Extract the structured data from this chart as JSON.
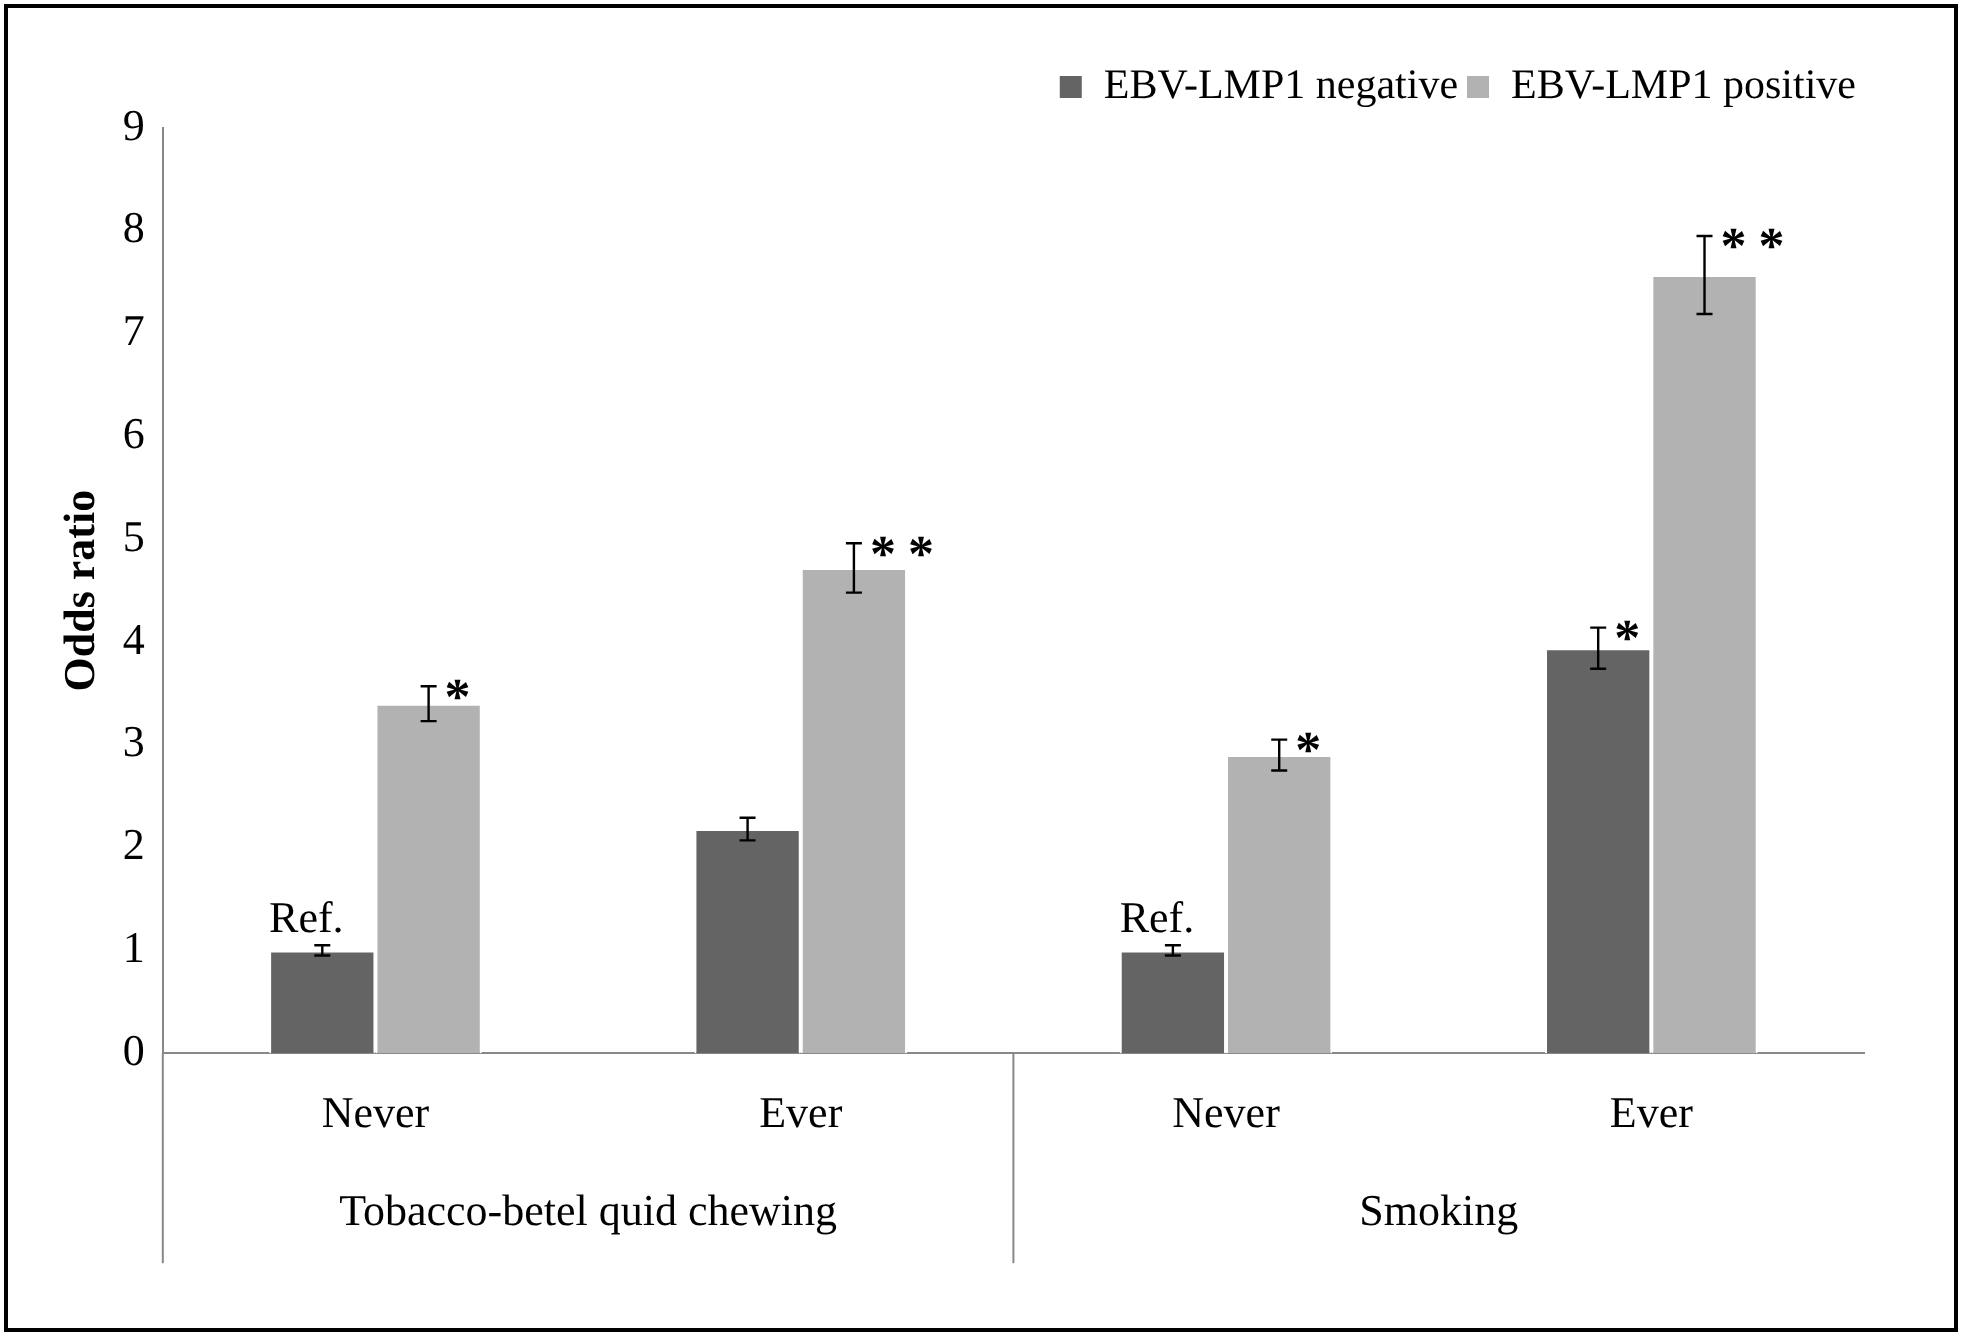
{
  "chart_data": {
    "type": "bar",
    "ylabel": "Odds ratio",
    "categories": [
      "Never",
      "Ever",
      "Never",
      "Ever"
    ],
    "series": [
      {
        "name": "EBV-LMP1 negative",
        "color": "#646464",
        "values": [
          1.0,
          2.18,
          1.0,
          3.94
        ],
        "errors": [
          0.05,
          0.11,
          0.05,
          0.2
        ],
        "value_labels": [
          "Ref.",
          null,
          "Ref.",
          "*"
        ]
      },
      {
        "name": "EBV-LMP1 positive",
        "color": "#b2b2b2",
        "values": [
          3.4,
          4.72,
          2.9,
          7.57
        ],
        "errors": [
          0.17,
          0.24,
          0.15,
          0.38
        ],
        "value_labels": [
          "*",
          "**",
          "*",
          "**"
        ]
      }
    ],
    "annotations": [
      "Tobacco-betel quid chewing",
      "Smoking"
    ],
    "ylim": [
      0,
      9
    ],
    "yticks": [
      0,
      1,
      2,
      3,
      4,
      5,
      6,
      7,
      8,
      9
    ],
    "grid": false,
    "legend": "top right"
  }
}
